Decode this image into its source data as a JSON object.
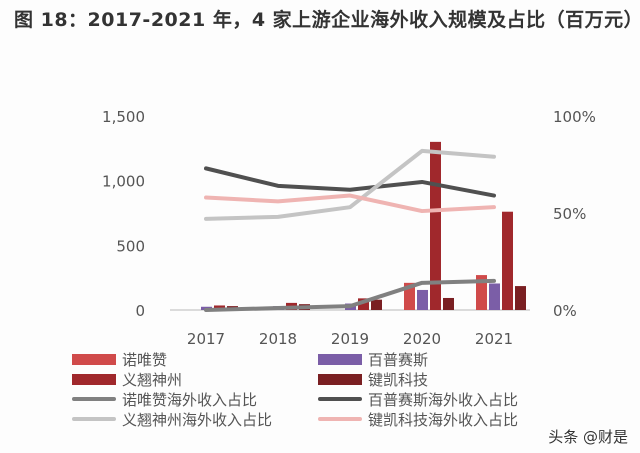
{
  "title": "图 18：2017-2021 年，4 家上游企业海外收入规模及占比（百万元）",
  "watermark": "头条 @财是",
  "chart_data": {
    "type": "bar+line",
    "title": "图 18：2017-2021 年，4 家上游企业海外收入规模及占比（百万元）",
    "categories": [
      "2017",
      "2018",
      "2019",
      "2020",
      "2021"
    ],
    "y_left": {
      "ylim": [
        0,
        1500
      ],
      "ticks": [
        "0",
        "500",
        "1,000",
        "1,500"
      ]
    },
    "y_right": {
      "ylim": [
        0,
        100
      ],
      "ticks": [
        "0%",
        "50%",
        "100%"
      ]
    },
    "grid": false,
    "legend_placement": "bottom",
    "bar_series": [
      {
        "name": "诺唯赞",
        "color": "#d04a4a",
        "values": [
          0,
          0,
          0,
          210,
          270
        ]
      },
      {
        "name": "百普赛斯",
        "color": "#7b5ea7",
        "values": [
          25,
          30,
          50,
          155,
          205
        ]
      },
      {
        "name": "义翘神州",
        "color": "#a0282c",
        "values": [
          35,
          55,
          90,
          1300,
          760
        ]
      },
      {
        "name": "键凯科技",
        "color": "#7a1f22",
        "values": [
          30,
          45,
          80,
          93,
          185
        ]
      }
    ],
    "line_series": [
      {
        "name": "诺唯赞海外收入占比",
        "color": "#808080",
        "values": [
          0,
          1,
          2,
          14,
          15
        ]
      },
      {
        "name": "百普赛斯海外收入占比",
        "color": "#505050",
        "values": [
          73,
          64,
          62,
          66,
          59
        ]
      },
      {
        "name": "义翘神州海外收入占比",
        "color": "#c4c4c4",
        "values": [
          47,
          48,
          53,
          82,
          79
        ]
      },
      {
        "name": "键凯科技海外收入占比",
        "color": "#efb4b2",
        "values": [
          58,
          56,
          59,
          51,
          53
        ]
      }
    ]
  }
}
